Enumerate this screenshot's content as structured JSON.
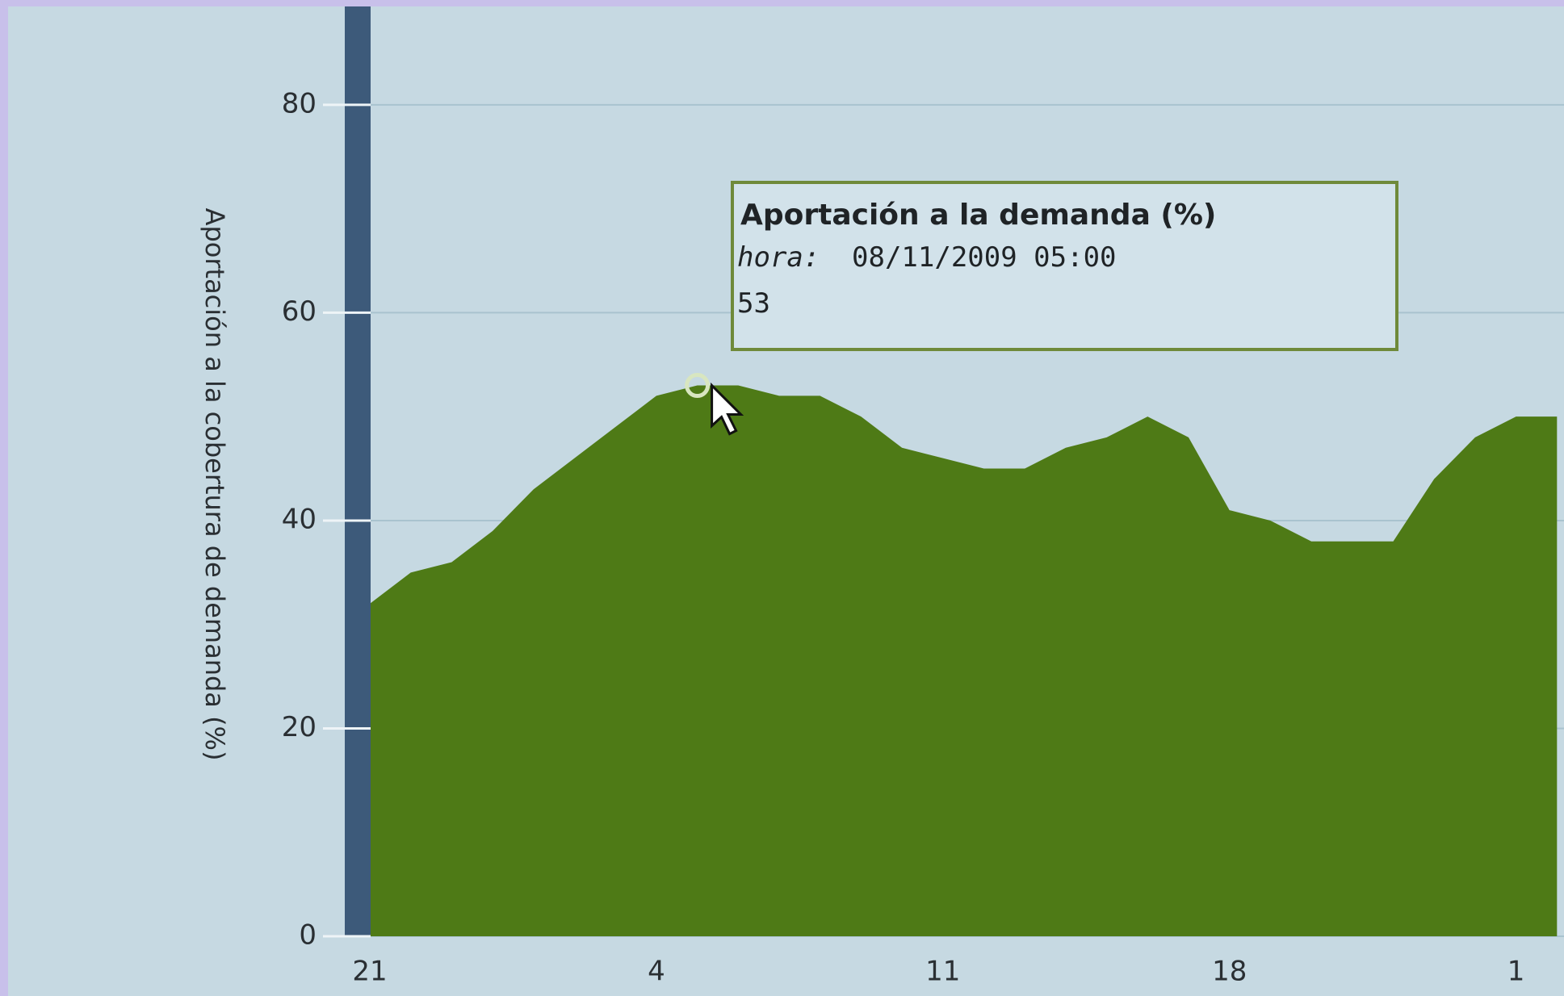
{
  "chart_data": {
    "type": "area",
    "y_label": "Aportación a la cobertura de demanda (%)",
    "categories": [
      "21",
      null,
      null,
      null,
      null,
      null,
      null,
      "4",
      null,
      null,
      null,
      null,
      null,
      null,
      "11",
      null,
      null,
      null,
      null,
      null,
      null,
      "18",
      null,
      null,
      null,
      null,
      null,
      null,
      "1",
      null
    ],
    "values": [
      32,
      35,
      36,
      39,
      43,
      46,
      49,
      52,
      53,
      53,
      52,
      52,
      50,
      47,
      46,
      45,
      45,
      47,
      48,
      50,
      48,
      41,
      40,
      38,
      38,
      38,
      44,
      48,
      50,
      50
    ],
    "color": "#4e7a16",
    "ylim": [
      0,
      85
    ],
    "yticks": [
      0,
      20,
      40,
      60,
      80
    ],
    "grid": true,
    "tooltip": {
      "title": "Aportación a la demanda (%)",
      "label": "hora:",
      "time": "08/11/2009 05:00",
      "value": 53,
      "index": 8
    }
  }
}
